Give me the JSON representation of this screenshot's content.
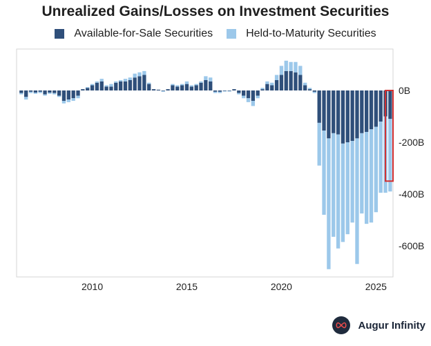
{
  "colors": {
    "afs": "#2f4f7a",
    "htm": "#9cc8ea",
    "highlight": "#d32f2f",
    "brand": "#1f2b3d"
  },
  "footer": {
    "brand": "Augur Infinity",
    "logo_icon": "infinity-icon"
  },
  "chart_data": {
    "type": "bar",
    "stacked": true,
    "title": "Unrealized Gains/Losses on Investment Securities",
    "xlabel": "",
    "ylabel": "",
    "legend_position": "top",
    "grid": false,
    "y_axis_side": "right",
    "ylim": [
      -720,
      160
    ],
    "y_ticks": [
      0,
      -200,
      -400,
      -600
    ],
    "y_tick_labels": [
      "0B",
      "-200B",
      "-400B",
      "-600B"
    ],
    "xlim": [
      2006.0,
      2025.9
    ],
    "x_ticks": [
      2010,
      2015,
      2020,
      2025
    ],
    "x_tick_labels": [
      "2010",
      "2015",
      "2020",
      "2025"
    ],
    "highlight": {
      "from_x": 2025.5,
      "to_x": 2025.9,
      "y_range": [
        0,
        -350
      ]
    },
    "x": [
      2006.25,
      2006.5,
      2006.75,
      2007.0,
      2007.25,
      2007.5,
      2007.75,
      2008.0,
      2008.25,
      2008.5,
      2008.75,
      2009.0,
      2009.25,
      2009.5,
      2009.75,
      2010.0,
      2010.25,
      2010.5,
      2010.75,
      2011.0,
      2011.25,
      2011.5,
      2011.75,
      2012.0,
      2012.25,
      2012.5,
      2012.75,
      2013.0,
      2013.25,
      2013.5,
      2013.75,
      2014.0,
      2014.25,
      2014.5,
      2014.75,
      2015.0,
      2015.25,
      2015.5,
      2015.75,
      2016.0,
      2016.25,
      2016.5,
      2016.75,
      2017.0,
      2017.25,
      2017.5,
      2017.75,
      2018.0,
      2018.25,
      2018.5,
      2018.75,
      2019.0,
      2019.25,
      2019.5,
      2019.75,
      2020.0,
      2020.25,
      2020.5,
      2020.75,
      2021.0,
      2021.25,
      2021.5,
      2021.75,
      2022.0,
      2022.25,
      2022.5,
      2022.75,
      2023.0,
      2023.25,
      2023.5,
      2023.75,
      2024.0,
      2024.25,
      2024.5,
      2024.75,
      2025.0,
      2025.25,
      2025.5,
      2025.75
    ],
    "series": [
      {
        "name": "Available-for-Sale Securities",
        "values": [
          -10,
          -25,
          -5,
          -8,
          -5,
          -15,
          -8,
          -10,
          -20,
          -40,
          -35,
          -30,
          -20,
          5,
          10,
          20,
          30,
          35,
          15,
          15,
          30,
          35,
          35,
          40,
          50,
          55,
          60,
          25,
          5,
          3,
          -2,
          5,
          20,
          15,
          20,
          25,
          15,
          20,
          30,
          40,
          35,
          -5,
          -5,
          -2,
          -2,
          5,
          -10,
          -20,
          -30,
          -40,
          -20,
          5,
          25,
          20,
          40,
          60,
          75,
          75,
          70,
          60,
          20,
          5,
          -5,
          -125,
          -155,
          -185,
          -165,
          -170,
          -205,
          -200,
          -195,
          -185,
          -165,
          -160,
          -150,
          -140,
          -120,
          -100,
          -110
        ]
      },
      {
        "name": "Held-to-Maturity Securities",
        "values": [
          -5,
          -10,
          -5,
          -5,
          -5,
          -5,
          -5,
          -5,
          -5,
          -10,
          -10,
          -10,
          -10,
          0,
          3,
          5,
          5,
          10,
          5,
          10,
          5,
          5,
          10,
          10,
          15,
          15,
          15,
          5,
          0,
          0,
          -3,
          0,
          5,
          5,
          5,
          10,
          5,
          5,
          5,
          15,
          15,
          -5,
          -5,
          -2,
          -2,
          0,
          -5,
          -10,
          -15,
          -20,
          -10,
          5,
          10,
          10,
          20,
          35,
          40,
          35,
          40,
          35,
          10,
          5,
          -5,
          -165,
          -325,
          -505,
          -400,
          -440,
          -380,
          -355,
          -315,
          -485,
          -310,
          -355,
          -360,
          -330,
          -275,
          -295,
          -280
        ]
      }
    ]
  }
}
